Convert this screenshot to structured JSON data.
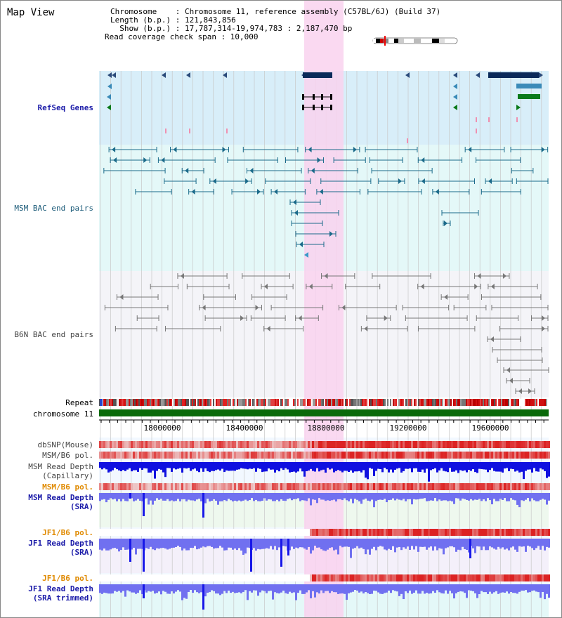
{
  "header": {
    "title": "Map View",
    "chromosome_line": "Chromosome    : Chromosome 11, reference assembly (C57BL/6J) (Build 37)",
    "length_line": "Length (b.p.) : 121,843,856",
    "show_line": "  Show (b.p.) : 17,787,314-19,974,783 : 2,187,470 bp",
    "coverage_line": "Read coverage check span : 10,000"
  },
  "tracks": {
    "refseq": "RefSeq Genes",
    "msm_bac": "MSM BAC end pairs",
    "b6n_bac": "B6N BAC end pairs",
    "repeat": "Repeat",
    "chromosome": "chromosome 11",
    "dbsnp": "dbSNP(Mouse)",
    "msm_b6_pol_1": "MSM/B6 pol.",
    "msm_read_depth_cap_1": "MSM Read Depth",
    "msm_read_depth_cap_2": "(Capillary)",
    "msm_b6_pol_2": "MSM/B6 pol.",
    "msm_read_depth_sra_1": "MSM Read Depth",
    "msm_read_depth_sra_2": "(SRA)",
    "jf1_b6_pol_1": "JF1/B6 pol.",
    "jf1_read_depth_sra_1": "JF1 Read Depth",
    "jf1_read_depth_sra_2": "(SRA)",
    "jf1_b6_pol_2": "JF1/B6 pol.",
    "jf1_read_depth_trim_1": "JF1 Read Depth",
    "jf1_read_depth_trim_2": "(SRA trimmed)"
  },
  "axis": {
    "ticks": [
      "18000000",
      "18400000",
      "18800000",
      "19200000",
      "19600000"
    ]
  },
  "colors": {
    "highlight": "#f9d2ee",
    "refseq_bg": "#d8eef9",
    "msm_bg": "#e4f8f8",
    "b6n_bg": "#f4f4f8",
    "gene_dark": "#0a2a5a",
    "gene_green": "#0a7a1a",
    "msm_pair": "#1a6a8a",
    "b6n_pair": "#777777",
    "depth_blue": "#1010e0",
    "depth_light": "#7070f0",
    "chrom_green": "#0a6a0a"
  }
}
